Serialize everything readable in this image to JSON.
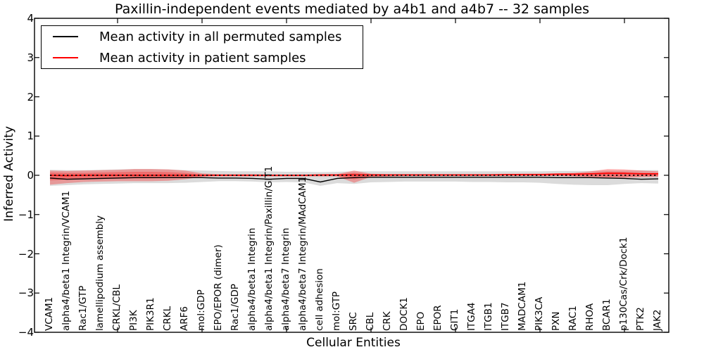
{
  "title": "Paxillin-independent events mediated by a4b1 and a4b7 -- 32 samples",
  "legend": {
    "items": [
      {
        "label": "Mean activity in all permuted samples",
        "color": "#000000"
      },
      {
        "label": "Mean activity in patient samples",
        "color": "#ff0000"
      }
    ]
  },
  "axes": {
    "ylabel": "Inferred Activity",
    "xlabel": "Cellular Entities",
    "yticks": [
      "4",
      "3",
      "2",
      "1",
      "0",
      "−1",
      "−2",
      "−3",
      "−4"
    ],
    "ylim": [
      -4,
      4
    ]
  },
  "chart_data": {
    "type": "line",
    "title": "Paxillin-independent events mediated by a4b1 and a4b7 -- 32 samples",
    "xlabel": "Cellular Entities",
    "ylabel": "Inferred Activity",
    "ylim": [
      -4,
      4
    ],
    "grid": false,
    "legend_position": "upper left",
    "xticks_at": [
      5,
      10,
      15,
      20,
      25,
      30,
      35
    ],
    "categories": [
      "VCAM1",
      "alpha4/beta1 Integrin/VCAM1",
      "Rac1/GTP",
      "lamellipodium assembly",
      "CRKL/CBL",
      "PI3K",
      "PIK3R1",
      "CRKL",
      "ARF6",
      "mol:GDP",
      "EPO/EPOR (dimer)",
      "Rac1/GDP",
      "alpha4/beta1 Integrin",
      "alpha4/beta1 Integrin/Paxillin/GIT1",
      "alpha4/beta7 Integrin",
      "alpha4/beta7 Integrin/MAdCAM1",
      "cell adhesion",
      "mol:GTP",
      "SRC",
      "CBL",
      "CRK",
      "DOCK1",
      "EPO",
      "EPOR",
      "GIT1",
      "ITGA4",
      "ITGB1",
      "ITGB7",
      "MADCAM1",
      "PIK3CA",
      "PXN",
      "RAC1",
      "RHOA",
      "BCAR1",
      "p130Cas/Crk/Dock1",
      "PTK2",
      "JAK2"
    ],
    "series": [
      {
        "name": "Mean activity in all permuted samples",
        "color": "#000000",
        "style": "solid",
        "width": 1.4,
        "values": [
          -0.07,
          -0.1,
          -0.09,
          -0.08,
          -0.07,
          -0.06,
          -0.06,
          -0.06,
          -0.06,
          -0.06,
          -0.07,
          -0.07,
          -0.08,
          -0.1,
          -0.08,
          -0.08,
          -0.17,
          -0.08,
          -0.06,
          -0.05,
          -0.05,
          -0.05,
          -0.05,
          -0.05,
          -0.05,
          -0.05,
          -0.05,
          -0.05,
          -0.05,
          -0.05,
          -0.06,
          -0.06,
          -0.06,
          -0.07,
          -0.08,
          -0.1,
          -0.09
        ]
      },
      {
        "name": "Mean activity in patient samples",
        "color": "#ff0000",
        "style": "solid",
        "width": 1.6,
        "values": [
          0.0,
          -0.01,
          0.0,
          0.0,
          0.0,
          0.0,
          0.0,
          0.0,
          0.0,
          0.0,
          0.0,
          0.0,
          0.0,
          0.0,
          0.0,
          0.0,
          0.01,
          0.01,
          0.01,
          0.01,
          0.01,
          0.01,
          0.01,
          0.01,
          0.01,
          0.01,
          0.01,
          0.02,
          0.02,
          0.02,
          0.03,
          0.03,
          0.04,
          0.05,
          0.05,
          0.04,
          0.04
        ]
      },
      {
        "name": "zero-reference",
        "color": "#000000",
        "style": "dotted",
        "width": 1.8,
        "dash": "2.4 3.6",
        "values": [
          0,
          0,
          0,
          0,
          0,
          0,
          0,
          0,
          0,
          0,
          0,
          0,
          0,
          0,
          0,
          0,
          0,
          0,
          0,
          0,
          0,
          0,
          0,
          0,
          0,
          0,
          0,
          0,
          0,
          0,
          0,
          0,
          0,
          0,
          0,
          0,
          0
        ]
      }
    ],
    "bands": [
      {
        "name": "permuted-range",
        "color": "rgba(0,0,0,0.14)",
        "upper": [
          0.14,
          0.13,
          0.13,
          0.14,
          0.15,
          0.16,
          0.16,
          0.15,
          0.13,
          0.12,
          0.11,
          0.1,
          0.1,
          0.1,
          0.09,
          0.09,
          0.08,
          0.09,
          0.1,
          0.1,
          0.1,
          0.1,
          0.1,
          0.1,
          0.1,
          0.1,
          0.1,
          0.1,
          0.1,
          0.1,
          0.11,
          0.11,
          0.11,
          0.12,
          0.12,
          0.13,
          0.13
        ],
        "lower": [
          -0.27,
          -0.25,
          -0.23,
          -0.22,
          -0.21,
          -0.2,
          -0.2,
          -0.2,
          -0.19,
          -0.17,
          -0.15,
          -0.15,
          -0.16,
          -0.18,
          -0.17,
          -0.18,
          -0.27,
          -0.2,
          -0.22,
          -0.18,
          -0.17,
          -0.16,
          -0.16,
          -0.16,
          -0.16,
          -0.17,
          -0.17,
          -0.18,
          -0.18,
          -0.19,
          -0.22,
          -0.24,
          -0.25,
          -0.25,
          -0.22,
          -0.2,
          -0.21
        ]
      },
      {
        "name": "patient-range-outer",
        "color": "rgba(255,0,0,0.30)",
        "upper": [
          0.12,
          0.11,
          0.12,
          0.13,
          0.14,
          0.16,
          0.16,
          0.15,
          0.12,
          0.05,
          0.03,
          0.03,
          0.03,
          0.02,
          0.02,
          0.02,
          0.02,
          0.03,
          0.12,
          0.04,
          0.03,
          0.03,
          0.03,
          0.03,
          0.03,
          0.03,
          0.03,
          0.03,
          0.04,
          0.04,
          0.05,
          0.06,
          0.1,
          0.16,
          0.15,
          0.12,
          0.1
        ],
        "lower": [
          -0.24,
          -0.2,
          -0.17,
          -0.16,
          -0.15,
          -0.15,
          -0.15,
          -0.14,
          -0.1,
          -0.04,
          -0.03,
          -0.03,
          -0.03,
          -0.03,
          -0.03,
          -0.03,
          -0.03,
          -0.03,
          -0.19,
          -0.04,
          -0.03,
          -0.02,
          -0.02,
          -0.02,
          -0.02,
          -0.02,
          -0.02,
          -0.02,
          -0.02,
          -0.02,
          -0.02,
          -0.03,
          -0.05,
          -0.08,
          -0.07,
          -0.05,
          -0.04
        ]
      },
      {
        "name": "patient-range-inner",
        "color": "rgba(255,0,0,0.28)",
        "upper": [
          0.07,
          0.06,
          0.06,
          0.07,
          0.08,
          0.09,
          0.09,
          0.08,
          0.06,
          0.02,
          0.015,
          0.015,
          0.015,
          0.01,
          0.01,
          0.01,
          0.01,
          0.015,
          0.06,
          0.02,
          0.015,
          0.015,
          0.015,
          0.015,
          0.015,
          0.015,
          0.015,
          0.015,
          0.02,
          0.02,
          0.025,
          0.03,
          0.05,
          0.09,
          0.08,
          0.06,
          0.05
        ],
        "lower": [
          -0.13,
          -0.11,
          -0.09,
          -0.08,
          -0.08,
          -0.08,
          -0.08,
          -0.07,
          -0.05,
          -0.02,
          -0.015,
          -0.015,
          -0.015,
          -0.015,
          -0.015,
          -0.015,
          -0.015,
          -0.015,
          -0.1,
          -0.02,
          -0.015,
          -0.01,
          -0.01,
          -0.01,
          -0.01,
          -0.01,
          -0.01,
          -0.01,
          -0.01,
          -0.01,
          -0.01,
          -0.015,
          -0.025,
          -0.04,
          -0.035,
          -0.025,
          -0.02
        ]
      }
    ]
  }
}
